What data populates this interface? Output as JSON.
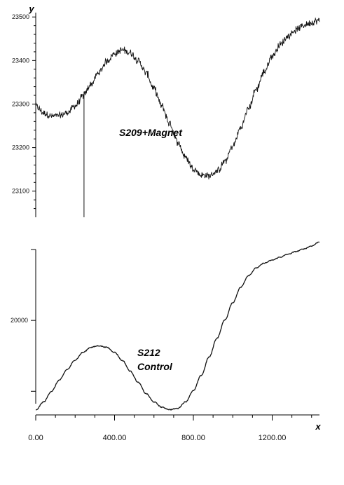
{
  "chart_data": [
    {
      "type": "line",
      "ylabel": "y",
      "xlim": [
        0,
        1440
      ],
      "ylim": [
        23040,
        23510
      ],
      "yticks": [
        23100,
        23200,
        23300,
        23400,
        23500
      ],
      "annotation": "S209+Magnet",
      "x": [
        0,
        40,
        80,
        120,
        160,
        200,
        240,
        280,
        320,
        360,
        400,
        440,
        480,
        520,
        560,
        600,
        640,
        680,
        720,
        760,
        800,
        840,
        880,
        920,
        960,
        1000,
        1040,
        1080,
        1120,
        1160,
        1200,
        1240,
        1280,
        1320,
        1360,
        1400,
        1440
      ],
      "y": [
        23295,
        23280,
        23272,
        23273,
        23280,
        23296,
        23318,
        23345,
        23372,
        23398,
        23416,
        23424,
        23418,
        23400,
        23372,
        23335,
        23295,
        23255,
        23213,
        23178,
        23152,
        23137,
        23135,
        23145,
        23168,
        23203,
        23245,
        23290,
        23335,
        23375,
        23410,
        23436,
        23456,
        23470,
        23481,
        23488,
        23492
      ],
      "spike": {
        "x": 245,
        "y_min": 23040
      },
      "color": "#111111"
    },
    {
      "type": "line",
      "xlabel": "x",
      "xlim": [
        0,
        1440
      ],
      "ylim": [
        18400,
        21200
      ],
      "yticks": [
        18800,
        20000,
        21200
      ],
      "ytick_labels": [
        "",
        "20000",
        ""
      ],
      "xticks": [
        0,
        400,
        800,
        1200
      ],
      "xtick_labels": [
        "0.00",
        "400.00",
        "800.00",
        "1200.00"
      ],
      "annotation": [
        "S212",
        "Control"
      ],
      "x": [
        0,
        40,
        80,
        120,
        160,
        200,
        240,
        280,
        320,
        360,
        400,
        440,
        480,
        520,
        560,
        600,
        640,
        680,
        720,
        760,
        800,
        840,
        880,
        920,
        960,
        1000,
        1040,
        1080,
        1120,
        1160,
        1200,
        1240,
        1280,
        1320,
        1360,
        1400,
        1440
      ],
      "y": [
        18480,
        18620,
        18800,
        18990,
        19170,
        19330,
        19460,
        19545,
        19570,
        19545,
        19460,
        19320,
        19140,
        18950,
        18760,
        18620,
        18530,
        18490,
        18510,
        18620,
        18810,
        19070,
        19380,
        19700,
        20010,
        20300,
        20560,
        20760,
        20890,
        20970,
        21020,
        21070,
        21120,
        21165,
        21210,
        21260,
        21330
      ],
      "color": "#111111"
    }
  ]
}
